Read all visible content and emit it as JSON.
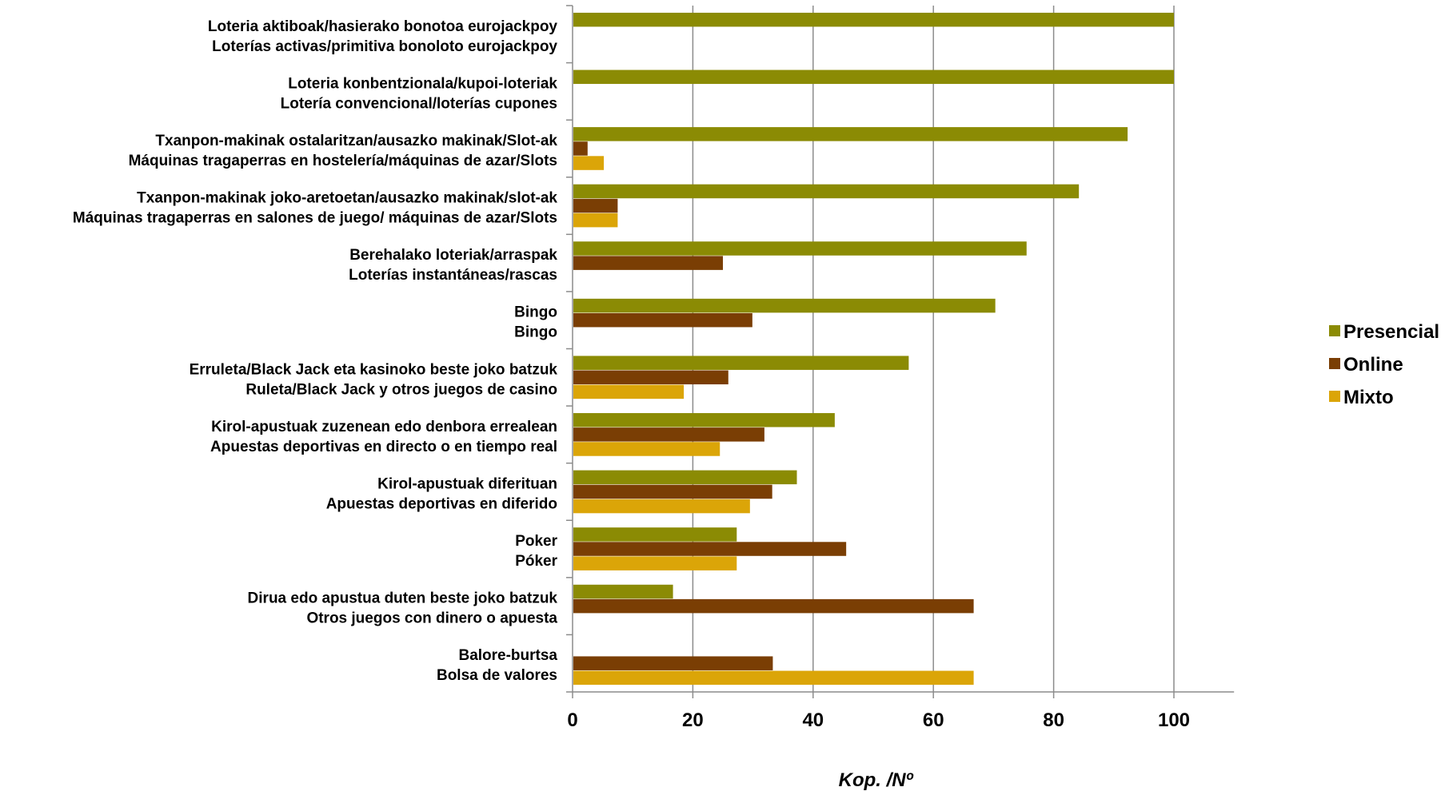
{
  "chart_data": {
    "type": "bar",
    "orientation": "horizontal",
    "categories": [
      [
        "Loteria aktiboak/hasierako bonotoa eurojackpoy",
        "Loterías activas/primitiva bonoloto eurojackpoy"
      ],
      [
        "Loteria konbentzionala/kupoi-loteriak",
        "Lotería convencional/loterías cupones"
      ],
      [
        "Txanpon-makinak ostalaritzan/ausazko makinak/Slot-ak",
        "Máquinas tragaperras en hostelería/máquinas de azar/Slots"
      ],
      [
        "Txanpon-makinak joko-aretoetan/ausazko makinak/slot-ak",
        "Máquinas tragaperras en salones de juego/ máquinas de azar/Slots"
      ],
      [
        "Berehalako loteriak/arraspak",
        "Loterías instantáneas/rascas"
      ],
      [
        "Bingo",
        "Bingo"
      ],
      [
        "Erruleta/Black Jack eta kasinoko beste joko batzuk",
        "Ruleta/Black Jack y otros juegos de casino"
      ],
      [
        "Kirol-apustuak zuzenean edo denbora errealean",
        "Apuestas deportivas en directo o en tiempo real"
      ],
      [
        "Kirol-apustuak diferituan",
        "Apuestas deportivas en diferido"
      ],
      [
        "Poker",
        "Póker"
      ],
      [
        "Dirua edo apustua duten beste joko batzuk",
        "Otros juegos con dinero o apuesta"
      ],
      [
        "Balore-burtsa",
        "Bolsa de valores"
      ]
    ],
    "series": [
      {
        "name": "Presencial",
        "color": "#8b8b04",
        "values": [
          100,
          100,
          92.3,
          84.2,
          75.5,
          70.3,
          55.9,
          43.6,
          37.3,
          27.3,
          16.7,
          0
        ]
      },
      {
        "name": "Online",
        "color": "#7a3e04",
        "values": [
          0,
          0,
          2.5,
          7.5,
          25.0,
          29.9,
          25.9,
          31.9,
          33.2,
          45.5,
          66.7,
          33.3
        ]
      },
      {
        "name": "Mixto",
        "color": "#dba508",
        "values": [
          0,
          0,
          5.2,
          7.5,
          0,
          0,
          18.5,
          24.5,
          29.5,
          27.3,
          0,
          66.7
        ]
      }
    ],
    "xlim": [
      0,
      110
    ],
    "xticks": [
      "0",
      "20",
      "40",
      "60",
      "80",
      "100"
    ],
    "xlabel": "Kop. /Nº",
    "ylabel": "",
    "title": "",
    "grid": "vertical",
    "legend": "right"
  }
}
